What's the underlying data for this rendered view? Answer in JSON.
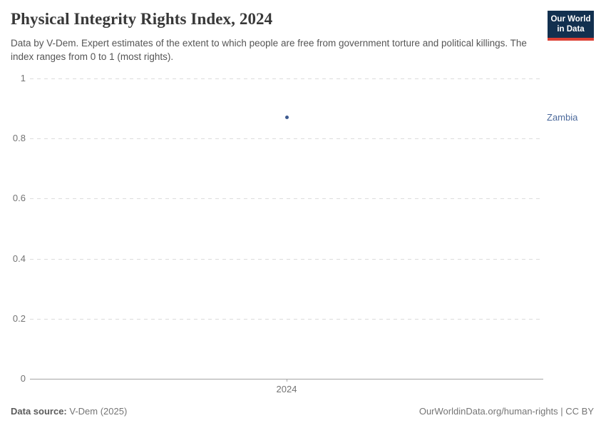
{
  "header": {
    "title": "Physical Integrity Rights Index, 2024",
    "subtitle": "Data by V-Dem. Expert estimates of the extent to which people are free from government torture and political killings. The index ranges from 0 to 1 (most rights).",
    "logo": {
      "line1": "Our World",
      "line2": "in Data",
      "bg_color": "#12304f",
      "accent_color": "#dc3f33"
    }
  },
  "chart_data": {
    "type": "scatter",
    "title": "Physical Integrity Rights Index, 2024",
    "x": [
      2024
    ],
    "x_tick_labels": [
      "2024"
    ],
    "series": [
      {
        "name": "Zambia",
        "color": "#3d5a8f",
        "values": [
          0.87
        ]
      }
    ],
    "ylim": [
      0,
      1
    ],
    "y_ticks": [
      0,
      0.2,
      0.4,
      0.6,
      0.8,
      1
    ],
    "grid": "horizontal-dashed",
    "legend_position": "right-of-point",
    "entity_label_color": "#4c6a9c",
    "gridline_color": "#dcdcdc",
    "axis_color": "#a5a5a5",
    "tick_label_color": "#737373"
  },
  "footer": {
    "source_label": "Data source:",
    "source_value": "V-Dem (2025)",
    "credit": "OurWorldinData.org/human-rights | CC BY"
  }
}
